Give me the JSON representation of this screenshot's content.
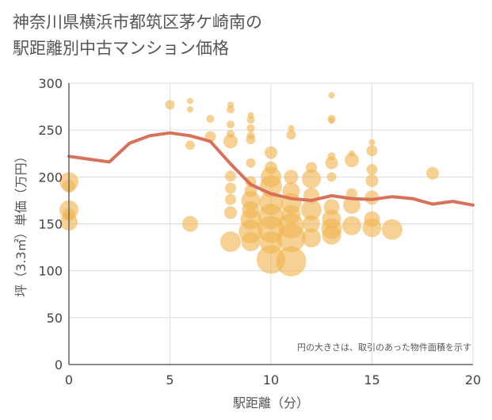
{
  "title_line1": "神奈川県横浜市都筑区茅ケ崎南の",
  "title_line2": "駅距離別中古マンション価格",
  "colors": {
    "bubble": "#f0b450",
    "line": "#d9705a",
    "grid": "#d8dce3",
    "axis": "#666666"
  },
  "chart_data": {
    "type": "scatter",
    "xlabel": "駅距離（分）",
    "ylabel": "坪（3.3㎡）単価（万円）",
    "xlim": [
      0,
      20
    ],
    "ylim": [
      0,
      300
    ],
    "xticks": [
      "0",
      "5",
      "10",
      "15",
      "20"
    ],
    "yticks": [
      "0",
      "50",
      "100",
      "150",
      "200",
      "250",
      "300"
    ],
    "note": "円の大きさは、取引のあった物件面積を示す",
    "grid": true,
    "line": {
      "x": [
        0,
        1,
        2,
        3,
        4,
        5,
        6,
        7,
        8,
        9,
        10,
        11,
        12,
        13,
        14,
        15,
        16,
        17,
        18,
        19,
        20
      ],
      "y": [
        222,
        219,
        216,
        236,
        244,
        247,
        244,
        238,
        214,
        192,
        182,
        177,
        175,
        180,
        177,
        176,
        179,
        177,
        171,
        174,
        170
      ]
    },
    "bubbles": [
      {
        "x": 0,
        "y": 195,
        "s": 12
      },
      {
        "x": 0,
        "y": 190,
        "s": 8
      },
      {
        "x": 0,
        "y": 165,
        "s": 12
      },
      {
        "x": 0,
        "y": 152,
        "s": 11
      },
      {
        "x": 0,
        "y": 160,
        "s": 8
      },
      {
        "x": 5,
        "y": 277,
        "s": 6
      },
      {
        "x": 6,
        "y": 281,
        "s": 4
      },
      {
        "x": 6,
        "y": 272,
        "s": 4
      },
      {
        "x": 6,
        "y": 234,
        "s": 6
      },
      {
        "x": 6,
        "y": 150,
        "s": 10
      },
      {
        "x": 7,
        "y": 262,
        "s": 5
      },
      {
        "x": 7,
        "y": 243,
        "s": 7
      },
      {
        "x": 8,
        "y": 277,
        "s": 4
      },
      {
        "x": 8,
        "y": 272,
        "s": 5
      },
      {
        "x": 8,
        "y": 256,
        "s": 5
      },
      {
        "x": 8,
        "y": 246,
        "s": 5
      },
      {
        "x": 8,
        "y": 238,
        "s": 9
      },
      {
        "x": 8,
        "y": 201,
        "s": 7
      },
      {
        "x": 8,
        "y": 188,
        "s": 7
      },
      {
        "x": 8,
        "y": 176,
        "s": 7
      },
      {
        "x": 8,
        "y": 162,
        "s": 8
      },
      {
        "x": 8,
        "y": 131,
        "s": 13
      },
      {
        "x": 9,
        "y": 266,
        "s": 4
      },
      {
        "x": 9,
        "y": 261,
        "s": 5
      },
      {
        "x": 9,
        "y": 252,
        "s": 5
      },
      {
        "x": 9,
        "y": 244,
        "s": 5
      },
      {
        "x": 9,
        "y": 240,
        "s": 6
      },
      {
        "x": 9,
        "y": 215,
        "s": 6
      },
      {
        "x": 9,
        "y": 195,
        "s": 7
      },
      {
        "x": 9,
        "y": 185,
        "s": 8
      },
      {
        "x": 9,
        "y": 175,
        "s": 12
      },
      {
        "x": 9,
        "y": 165,
        "s": 11
      },
      {
        "x": 9,
        "y": 155,
        "s": 13
      },
      {
        "x": 9,
        "y": 142,
        "s": 15
      },
      {
        "x": 9,
        "y": 131,
        "s": 12
      },
      {
        "x": 10,
        "y": 226,
        "s": 8
      },
      {
        "x": 10,
        "y": 210,
        "s": 8
      },
      {
        "x": 10,
        "y": 200,
        "s": 13
      },
      {
        "x": 10,
        "y": 190,
        "s": 14
      },
      {
        "x": 10,
        "y": 172,
        "s": 15
      },
      {
        "x": 10,
        "y": 158,
        "s": 16
      },
      {
        "x": 10,
        "y": 144,
        "s": 17
      },
      {
        "x": 10,
        "y": 130,
        "s": 14
      },
      {
        "x": 10,
        "y": 112,
        "s": 18
      },
      {
        "x": 11,
        "y": 252,
        "s": 4
      },
      {
        "x": 11,
        "y": 245,
        "s": 6
      },
      {
        "x": 11,
        "y": 200,
        "s": 9
      },
      {
        "x": 11,
        "y": 185,
        "s": 11
      },
      {
        "x": 11,
        "y": 172,
        "s": 13
      },
      {
        "x": 11,
        "y": 160,
        "s": 12
      },
      {
        "x": 11,
        "y": 148,
        "s": 16
      },
      {
        "x": 11,
        "y": 135,
        "s": 18
      },
      {
        "x": 11,
        "y": 110,
        "s": 19
      },
      {
        "x": 12,
        "y": 210,
        "s": 7
      },
      {
        "x": 12,
        "y": 198,
        "s": 12
      },
      {
        "x": 12,
        "y": 180,
        "s": 10
      },
      {
        "x": 12,
        "y": 165,
        "s": 13
      },
      {
        "x": 12,
        "y": 150,
        "s": 11
      },
      {
        "x": 12,
        "y": 135,
        "s": 12
      },
      {
        "x": 13,
        "y": 287,
        "s": 4
      },
      {
        "x": 13,
        "y": 262,
        "s": 5
      },
      {
        "x": 13,
        "y": 260,
        "s": 4
      },
      {
        "x": 13,
        "y": 222,
        "s": 5
      },
      {
        "x": 13,
        "y": 215,
        "s": 8
      },
      {
        "x": 13,
        "y": 200,
        "s": 6
      },
      {
        "x": 13,
        "y": 168,
        "s": 10
      },
      {
        "x": 13,
        "y": 155,
        "s": 12
      },
      {
        "x": 13,
        "y": 145,
        "s": 13
      },
      {
        "x": 13,
        "y": 138,
        "s": 12
      },
      {
        "x": 14,
        "y": 225,
        "s": 4
      },
      {
        "x": 14,
        "y": 218,
        "s": 9
      },
      {
        "x": 14,
        "y": 182,
        "s": 7
      },
      {
        "x": 14,
        "y": 170,
        "s": 11
      },
      {
        "x": 14,
        "y": 148,
        "s": 12
      },
      {
        "x": 15,
        "y": 237,
        "s": 4
      },
      {
        "x": 15,
        "y": 228,
        "s": 7
      },
      {
        "x": 15,
        "y": 208,
        "s": 7
      },
      {
        "x": 15,
        "y": 196,
        "s": 8
      },
      {
        "x": 15,
        "y": 178,
        "s": 9
      },
      {
        "x": 15,
        "y": 155,
        "s": 10
      },
      {
        "x": 15,
        "y": 146,
        "s": 12
      },
      {
        "x": 16,
        "y": 144,
        "s": 13
      },
      {
        "x": 18,
        "y": 204,
        "s": 8
      }
    ]
  }
}
